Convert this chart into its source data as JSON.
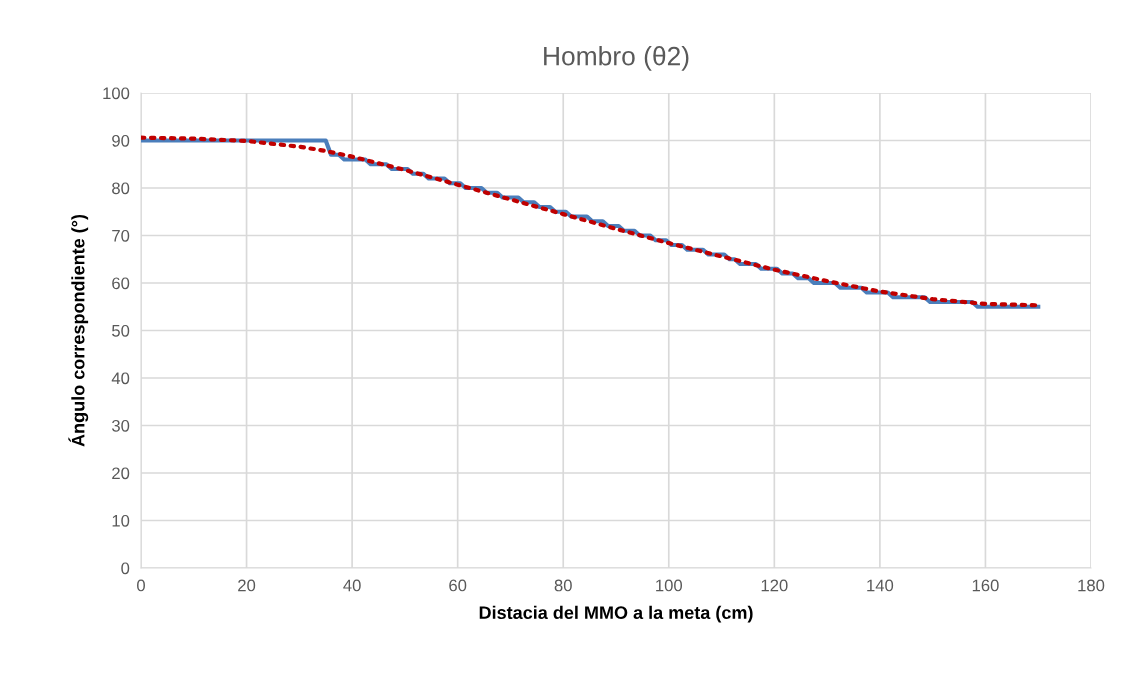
{
  "chart_data": {
    "type": "line",
    "title": "Hombro (θ2)",
    "xlabel": "Distacia del MMO a la meta (cm)",
    "ylabel": "Ángulo correspondiente (°)",
    "xlim": [
      0,
      180
    ],
    "xticks": [
      0,
      20,
      40,
      60,
      80,
      100,
      120,
      140,
      160,
      180
    ],
    "ylim": [
      0,
      100
    ],
    "yticks": [
      0,
      10,
      20,
      30,
      40,
      50,
      60,
      70,
      80,
      90,
      100
    ],
    "grid": true,
    "marker": "none",
    "series": [
      {
        "color": "#4a7ebb",
        "line_style": "solid",
        "x": [
          0,
          35,
          36,
          37.5,
          38.5,
          42.5,
          43.5,
          46.5,
          47.5,
          50.5,
          51.5,
          53.5,
          54.5,
          57.5,
          58.5,
          60.5,
          61.5,
          64.5,
          65.5,
          67.5,
          68.5,
          71.5,
          72.5,
          74.5,
          75.5,
          77.5,
          78.5,
          80.5,
          81.5,
          84.5,
          85.5,
          87.5,
          88.5,
          90.5,
          91.5,
          93.5,
          94.5,
          96.5,
          97.5,
          99.5,
          100.5,
          102.5,
          103.5,
          106.5,
          107.5,
          110.5,
          111.5,
          112.5,
          113.5,
          116.5,
          117.5,
          120.5,
          121.5,
          123.5,
          124.5,
          126.5,
          127.5,
          131.5,
          132.5,
          136.5,
          137.5,
          141.5,
          142.5,
          148.5,
          149.5,
          157.5,
          158.5,
          170
        ],
        "values": [
          90,
          90,
          87,
          87,
          86,
          86,
          85,
          85,
          84,
          84,
          83,
          83,
          82,
          82,
          81,
          81,
          80,
          80,
          79,
          79,
          78,
          78,
          77,
          77,
          76,
          76,
          75,
          75,
          74,
          74,
          73,
          73,
          72,
          72,
          71,
          71,
          70,
          70,
          69,
          69,
          68,
          68,
          67,
          67,
          66,
          66,
          65,
          65,
          64,
          64,
          63,
          63,
          62,
          62,
          61,
          61,
          60,
          60,
          59,
          59,
          58,
          58,
          57,
          57,
          56,
          56,
          55,
          55
        ]
      },
      {
        "color": "#c00000",
        "line_style": "dotted",
        "x": [
          0,
          10,
          20,
          30,
          35,
          40,
          50,
          60,
          70,
          80,
          90,
          100,
          110,
          120,
          130,
          140,
          150,
          160,
          170
        ],
        "values": [
          90.6,
          90.4,
          89.9,
          88.7,
          87.8,
          86.6,
          83.8,
          80.7,
          77.6,
          74.5,
          71.4,
          68.4,
          65.6,
          62.8,
          60.4,
          58.2,
          56.6,
          55.6,
          55.3
        ]
      }
    ]
  }
}
